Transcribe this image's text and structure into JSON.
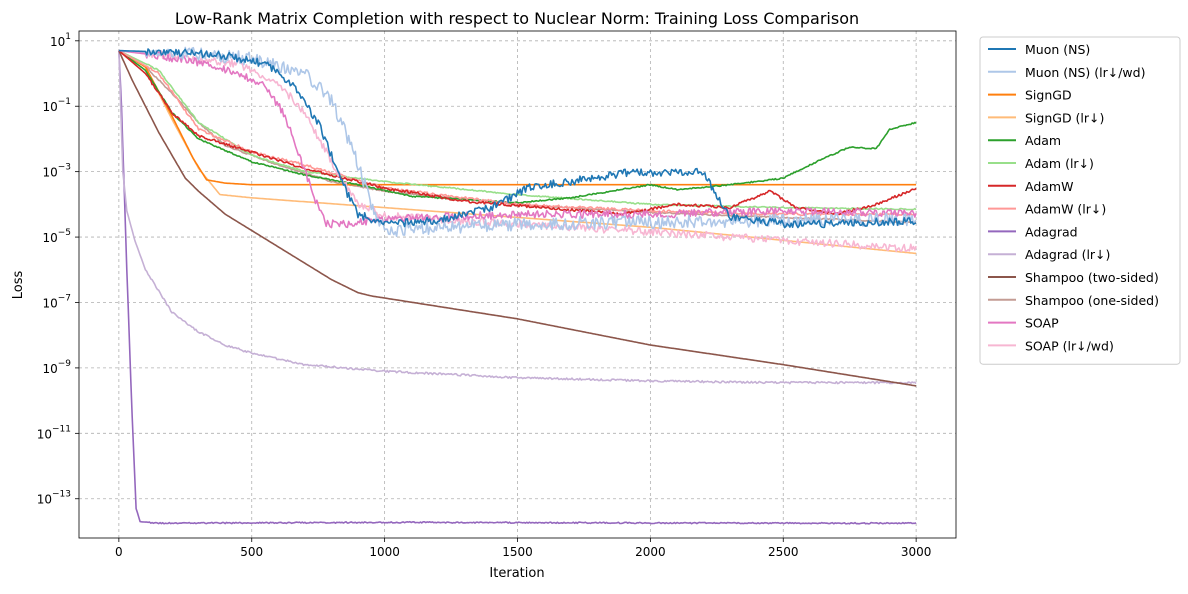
{
  "chart_data": {
    "type": "line",
    "title": "Low-Rank Matrix Completion with respect to Nuclear Norm: Training Loss Comparison",
    "xlabel": "Iteration",
    "ylabel": "Loss",
    "yscale": "log",
    "xlim": [
      -150,
      3150
    ],
    "ylim_log10": [
      -14.2,
      1.3
    ],
    "grid": true,
    "legend_position": "upper right outside",
    "x_ticks": [
      {
        "value": 0,
        "label": "0"
      },
      {
        "value": 500,
        "label": "500"
      },
      {
        "value": 1000,
        "label": "1000"
      },
      {
        "value": 1500,
        "label": "1500"
      },
      {
        "value": 2000,
        "label": "2000"
      },
      {
        "value": 2500,
        "label": "2500"
      },
      {
        "value": 3000,
        "label": "3000"
      }
    ],
    "y_ticks": [
      {
        "exp": 1,
        "base": "10",
        "sup": "1"
      },
      {
        "exp": -1,
        "base": "10",
        "sup": "−1"
      },
      {
        "exp": -3,
        "base": "10",
        "sup": "−3"
      },
      {
        "exp": -5,
        "base": "10",
        "sup": "−5"
      },
      {
        "exp": -7,
        "base": "10",
        "sup": "−7"
      },
      {
        "exp": -9,
        "base": "10",
        "sup": "−9"
      },
      {
        "exp": -11,
        "base": "10",
        "sup": "−11"
      },
      {
        "exp": -13,
        "base": "10",
        "sup": "−13"
      }
    ],
    "series": [
      {
        "name": "Muon (NS)",
        "color": "#1f77b4",
        "noise": 0.12,
        "points": [
          [
            0,
            0.7
          ],
          [
            200,
            0.65
          ],
          [
            400,
            0.55
          ],
          [
            550,
            0.3
          ],
          [
            650,
            -0.3
          ],
          [
            750,
            -1.5
          ],
          [
            850,
            -3.5
          ],
          [
            900,
            -4.3
          ],
          [
            1000,
            -4.6
          ],
          [
            1200,
            -4.5
          ],
          [
            1400,
            -4.1
          ],
          [
            1550,
            -3.45
          ],
          [
            1700,
            -3.3
          ],
          [
            1900,
            -3.05
          ],
          [
            2100,
            -3.0
          ],
          [
            2200,
            -3.0
          ],
          [
            2240,
            -3.6
          ],
          [
            2300,
            -4.4
          ],
          [
            2500,
            -4.6
          ],
          [
            2700,
            -4.6
          ],
          [
            2800,
            -4.55
          ],
          [
            3000,
            -4.5
          ]
        ]
      },
      {
        "name": "Muon (NS) (lr↓/wd)",
        "color": "#aec7e8",
        "noise": 0.2,
        "points": [
          [
            0,
            0.7
          ],
          [
            300,
            0.6
          ],
          [
            500,
            0.45
          ],
          [
            700,
            0.0
          ],
          [
            800,
            -0.8
          ],
          [
            880,
            -2.3
          ],
          [
            950,
            -4.0
          ],
          [
            1000,
            -4.8
          ],
          [
            1200,
            -4.7
          ],
          [
            1500,
            -4.6
          ],
          [
            2000,
            -4.55
          ],
          [
            2500,
            -4.5
          ],
          [
            3000,
            -4.45
          ]
        ]
      },
      {
        "name": "SignGD",
        "color": "#ff7f0e",
        "noise": 0,
        "points": [
          [
            0,
            0.7
          ],
          [
            100,
            0.2
          ],
          [
            200,
            -1.3
          ],
          [
            280,
            -2.6
          ],
          [
            330,
            -3.25
          ],
          [
            400,
            -3.35
          ],
          [
            500,
            -3.4
          ],
          [
            3000,
            -3.4
          ]
        ]
      },
      {
        "name": "SignGD (lr↓)",
        "color": "#ffbb78",
        "noise": 0,
        "points": [
          [
            0,
            0.7
          ],
          [
            100,
            0.2
          ],
          [
            200,
            -1.4
          ],
          [
            300,
            -2.9
          ],
          [
            380,
            -3.7
          ],
          [
            500,
            -3.8
          ],
          [
            1000,
            -4.1
          ],
          [
            1500,
            -4.4
          ],
          [
            2000,
            -4.7
          ],
          [
            2500,
            -5.1
          ],
          [
            3000,
            -5.5
          ]
        ]
      },
      {
        "name": "Adam",
        "color": "#2ca02c",
        "noise": 0.02,
        "points": [
          [
            0,
            0.7
          ],
          [
            100,
            0.1
          ],
          [
            200,
            -1.2
          ],
          [
            300,
            -2.0
          ],
          [
            500,
            -2.7
          ],
          [
            700,
            -3.1
          ],
          [
            900,
            -3.4
          ],
          [
            1100,
            -3.75
          ],
          [
            1300,
            -3.85
          ],
          [
            1500,
            -3.95
          ],
          [
            1700,
            -3.8
          ],
          [
            2000,
            -3.4
          ],
          [
            2100,
            -3.55
          ],
          [
            2300,
            -3.4
          ],
          [
            2500,
            -3.2
          ],
          [
            2650,
            -2.6
          ],
          [
            2750,
            -2.25
          ],
          [
            2850,
            -2.3
          ],
          [
            2900,
            -1.7
          ],
          [
            3000,
            -1.5
          ]
        ]
      },
      {
        "name": "Adam (lr↓)",
        "color": "#98df8a",
        "noise": 0.02,
        "points": [
          [
            0,
            0.7
          ],
          [
            150,
            0.1
          ],
          [
            300,
            -1.5
          ],
          [
            500,
            -2.5
          ],
          [
            700,
            -3.0
          ],
          [
            1000,
            -3.3
          ],
          [
            1500,
            -3.7
          ],
          [
            2000,
            -4.0
          ],
          [
            2500,
            -4.1
          ],
          [
            3000,
            -4.15
          ]
        ]
      },
      {
        "name": "AdamW",
        "color": "#d62728",
        "noise": 0.04,
        "points": [
          [
            0,
            0.7
          ],
          [
            100,
            0.0
          ],
          [
            200,
            -1.2
          ],
          [
            300,
            -1.9
          ],
          [
            500,
            -2.4
          ],
          [
            700,
            -2.9
          ],
          [
            1000,
            -3.5
          ],
          [
            1300,
            -3.9
          ],
          [
            1600,
            -4.1
          ],
          [
            1900,
            -4.3
          ],
          [
            2100,
            -4.0
          ],
          [
            2300,
            -4.1
          ],
          [
            2450,
            -3.6
          ],
          [
            2550,
            -4.1
          ],
          [
            2700,
            -4.3
          ],
          [
            2850,
            -4.0
          ],
          [
            3000,
            -3.5
          ]
        ]
      },
      {
        "name": "AdamW (lr↓)",
        "color": "#ff9896",
        "noise": 0.04,
        "points": [
          [
            0,
            0.7
          ],
          [
            150,
            0.0
          ],
          [
            300,
            -1.7
          ],
          [
            500,
            -2.4
          ],
          [
            700,
            -2.8
          ],
          [
            1000,
            -3.5
          ],
          [
            1500,
            -4.0
          ],
          [
            2000,
            -4.2
          ],
          [
            2500,
            -4.3
          ],
          [
            3000,
            -4.3
          ]
        ]
      },
      {
        "name": "Adagrad",
        "color": "#9467bd",
        "noise": 0.02,
        "points": [
          [
            0,
            0.7
          ],
          [
            10,
            -1.0
          ],
          [
            30,
            -6.0
          ],
          [
            50,
            -10.5
          ],
          [
            65,
            -13.3
          ],
          [
            80,
            -13.7
          ],
          [
            150,
            -13.75
          ],
          [
            1000,
            -13.72
          ],
          [
            2000,
            -13.74
          ],
          [
            3000,
            -13.75
          ]
        ]
      },
      {
        "name": "Adagrad (lr↓)",
        "color": "#c5b0d5",
        "noise": 0.03,
        "points": [
          [
            0,
            0.7
          ],
          [
            15,
            -3.0
          ],
          [
            30,
            -4.2
          ],
          [
            60,
            -5.1
          ],
          [
            100,
            -6.0
          ],
          [
            200,
            -7.3
          ],
          [
            300,
            -7.9
          ],
          [
            400,
            -8.3
          ],
          [
            500,
            -8.55
          ],
          [
            700,
            -8.9
          ],
          [
            1000,
            -9.1
          ],
          [
            1500,
            -9.3
          ],
          [
            2000,
            -9.4
          ],
          [
            2500,
            -9.45
          ],
          [
            3000,
            -9.45
          ]
        ]
      },
      {
        "name": "Shampoo (two-sided)",
        "color": "#8c564b",
        "noise": 0,
        "points": [
          [
            0,
            0.7
          ],
          [
            50,
            -0.2
          ],
          [
            100,
            -1.0
          ],
          [
            150,
            -1.8
          ],
          [
            200,
            -2.5
          ],
          [
            250,
            -3.2
          ],
          [
            300,
            -3.6
          ],
          [
            400,
            -4.3
          ],
          [
            500,
            -4.8
          ],
          [
            600,
            -5.3
          ],
          [
            700,
            -5.8
          ],
          [
            800,
            -6.3
          ],
          [
            900,
            -6.7
          ],
          [
            950,
            -6.8
          ],
          [
            1500,
            -7.5
          ],
          [
            2000,
            -8.3
          ],
          [
            2500,
            -8.9
          ],
          [
            3000,
            -9.55
          ]
        ]
      },
      {
        "name": "Shampoo (one-sided)",
        "color": "#c49c94",
        "noise": 0.02,
        "points": [
          [
            0,
            0.7
          ],
          [
            100,
            0.2
          ],
          [
            200,
            -0.6
          ],
          [
            300,
            -1.5
          ],
          [
            400,
            -2.2
          ],
          [
            600,
            -2.8
          ],
          [
            800,
            -3.3
          ],
          [
            1000,
            -3.6
          ],
          [
            1500,
            -4.0
          ],
          [
            2000,
            -4.25
          ],
          [
            2500,
            -4.4
          ],
          [
            3000,
            -4.55
          ]
        ]
      },
      {
        "name": "SOAP",
        "color": "#e377c2",
        "noise": 0.12,
        "points": [
          [
            0,
            0.7
          ],
          [
            100,
            0.6
          ],
          [
            300,
            0.35
          ],
          [
            450,
            0.0
          ],
          [
            550,
            -0.4
          ],
          [
            620,
            -1.2
          ],
          [
            680,
            -2.5
          ],
          [
            740,
            -3.9
          ],
          [
            780,
            -4.6
          ],
          [
            850,
            -4.6
          ],
          [
            1000,
            -4.45
          ],
          [
            1500,
            -4.3
          ],
          [
            2000,
            -4.3
          ],
          [
            2500,
            -4.2
          ],
          [
            3000,
            -4.3
          ]
        ]
      },
      {
        "name": "SOAP (lr↓/wd)",
        "color": "#f7b6d2",
        "noise": 0.12,
        "points": [
          [
            0,
            0.7
          ],
          [
            200,
            0.55
          ],
          [
            450,
            0.3
          ],
          [
            600,
            -0.3
          ],
          [
            700,
            -1.2
          ],
          [
            800,
            -2.7
          ],
          [
            900,
            -4.0
          ],
          [
            1000,
            -4.35
          ],
          [
            1500,
            -4.6
          ],
          [
            2000,
            -4.85
          ],
          [
            2500,
            -5.1
          ],
          [
            3000,
            -5.35
          ]
        ]
      }
    ]
  }
}
